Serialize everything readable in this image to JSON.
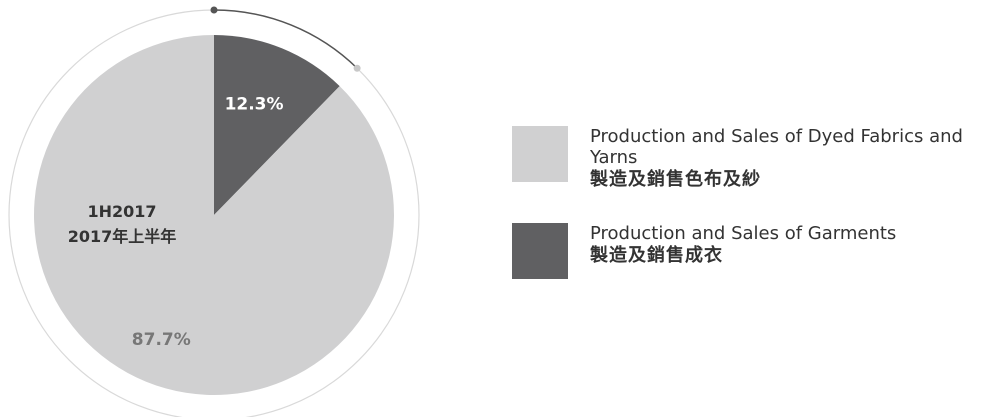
{
  "chart_data": {
    "type": "pie",
    "period_label": "1H2017",
    "period_label_zh": "2017年上半年",
    "slices": [
      {
        "name_en": "Production and Sales of Garments",
        "name_zh": "製造及銷售成衣",
        "value": 12.3,
        "label": "12.3%",
        "color": "#606062",
        "label_color": "#ffffff"
      },
      {
        "name_en": "Production and Sales of Dyed Fabrics and Yarns",
        "name_zh": "製造及銷售色布及紗",
        "value": 87.7,
        "label": "87.7%",
        "color": "#d0d0d1",
        "label_color": "#777777"
      }
    ],
    "legend_placement": "right"
  },
  "legend": {
    "items": [
      {
        "en": "Production and Sales of Dyed Fabrics and Yarns",
        "zh": "製造及銷售色布及紗",
        "color": "#d0d0d1"
      },
      {
        "en": "Production and Sales of Garments",
        "zh": "製造及銷售成衣",
        "color": "#606062"
      }
    ]
  },
  "colors": {
    "outer_ring": "#d9d9d9",
    "arc_accent": "#555555",
    "arc_end_dot": "#c8c8c8"
  }
}
